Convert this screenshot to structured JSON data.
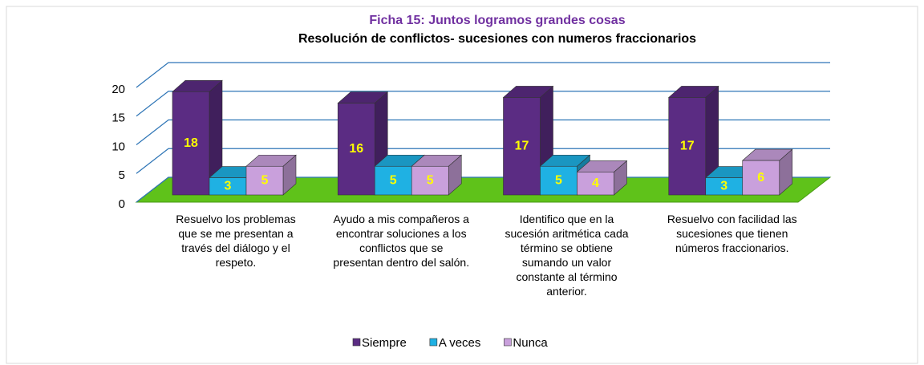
{
  "chart_data": {
    "type": "bar3d",
    "title": "Ficha 15: Juntos logramos grandes cosas",
    "subtitle": "Resolución de conflictos- sucesiones con numeros fraccionarios",
    "categories": [
      "Resuelvo los problemas que se me presentan a través del diálogo y el respeto.",
      "Ayudo a mis compañeros a encontrar soluciones a los conflictos que se presentan dentro del salón.",
      "Identifico que en la sucesión aritmética cada término se obtiene sumando un valor constante al término anterior.",
      "Resuelvo con facilidad las sucesiones que tienen números fraccionarios."
    ],
    "series": [
      {
        "name": "Siempre",
        "color": "#5b2c83",
        "values": [
          18,
          16,
          17,
          17
        ]
      },
      {
        "name": "A veces",
        "color": "#1fb1e3",
        "values": [
          3,
          5,
          5,
          3
        ]
      },
      {
        "name": "Nunca",
        "color": "#c9a0dc",
        "values": [
          5,
          5,
          4,
          6
        ]
      }
    ],
    "ylim": [
      0,
      20
    ],
    "yticks": [
      0,
      5,
      10,
      15,
      20
    ],
    "grid": true,
    "legend": "bottom"
  }
}
